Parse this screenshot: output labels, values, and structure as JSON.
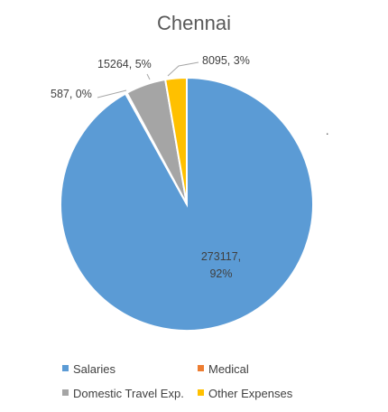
{
  "chart_data": {
    "type": "pie",
    "title": "Chennai",
    "slices": [
      {
        "name": "Salaries",
        "value": 273117,
        "percent_label": "92%",
        "color": "#5b9bd5"
      },
      {
        "name": "Medical",
        "value": 587,
        "percent_label": "0%",
        "color": "#ed7d31"
      },
      {
        "name": "Domestic Travel Exp.",
        "value": 15264,
        "percent_label": "5%",
        "color": "#a5a5a5"
      },
      {
        "name": "Other Expenses",
        "value": 8095,
        "percent_label": "3%",
        "color": "#ffc000"
      }
    ],
    "labels": {
      "salaries_line1": "273117,",
      "salaries_line2": "92%",
      "medical": "587, 0%",
      "travel": "15264, 5%",
      "other": "8095, 3%"
    },
    "stray_mark": ".",
    "legend_position": "bottom"
  }
}
